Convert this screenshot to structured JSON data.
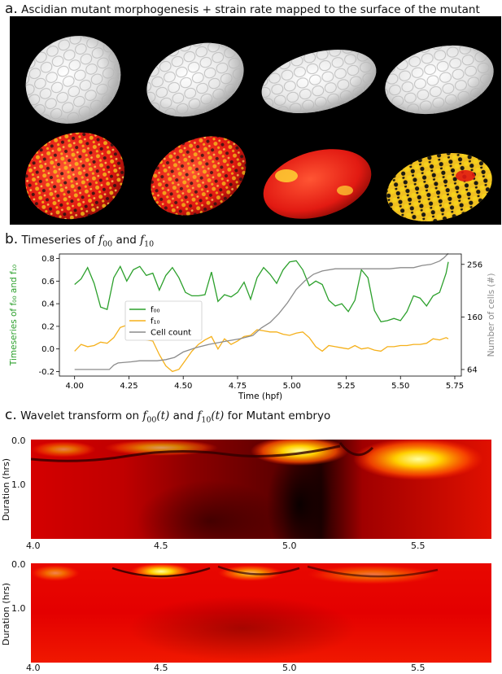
{
  "panel_a": {
    "letter": "a.",
    "title": "Ascidian mutant morphogenesis + strain rate mapped to the surface of the mutant"
  },
  "panel_b": {
    "letter": "b.",
    "title_prefix": "Timeseries of",
    "title_and": "and"
  },
  "panel_c": {
    "letter": "c.",
    "title_prefix": "Wavelet transform on",
    "title_and": "and",
    "title_suffix": "for Mutant embryo",
    "ylabel": "Duration (hrs)",
    "yticks": [
      "0.0",
      "1.0"
    ],
    "xticks": [
      "4.0",
      "4.5",
      "5.0",
      "5.5"
    ]
  },
  "colors": {
    "f00": "#2ca02c",
    "f10": "#f5b01a",
    "cell_count": "#8c8c8c",
    "heatmap": [
      "#000000",
      "#8b0000",
      "#e00000",
      "#ff4000",
      "#ffd000",
      "#ffff99"
    ]
  },
  "chart_data": {
    "type": "line",
    "title": "Timeseries of f00 and f10",
    "xlabel": "Time (hpf)",
    "ylabel": "Timeseries of f₀₀ and f₁₀",
    "ylabel_right": "Number of cells (#)",
    "xlim": [
      3.93,
      5.78
    ],
    "ylim": [
      -0.24,
      0.84
    ],
    "ylim_right": [
      52,
      275
    ],
    "xticks": [
      "4.00",
      "4.25",
      "4.50",
      "4.75",
      "5.00",
      "5.25",
      "5.50",
      "5.75"
    ],
    "yticks": [
      "-0.2",
      "0.0",
      "0.2",
      "0.4",
      "0.6",
      "0.8"
    ],
    "yticks_right": [
      "64",
      "160",
      "256"
    ],
    "legend": {
      "placement": "center-left",
      "entries": [
        "f₀₀",
        "f₁₀",
        "Cell count"
      ]
    },
    "grid": false,
    "series": [
      {
        "name": "f₀₀",
        "axis": "left",
        "x": [
          4.0,
          4.03,
          4.06,
          4.09,
          4.12,
          4.15,
          4.18,
          4.21,
          4.24,
          4.27,
          4.3,
          4.33,
          4.36,
          4.39,
          4.42,
          4.45,
          4.48,
          4.51,
          4.54,
          4.57,
          4.6,
          4.63,
          4.66,
          4.69,
          4.72,
          4.75,
          4.78,
          4.81,
          4.84,
          4.87,
          4.9,
          4.93,
          4.96,
          4.99,
          5.02,
          5.05,
          5.08,
          5.11,
          5.14,
          5.17,
          5.2,
          5.23,
          5.26,
          5.29,
          5.32,
          5.35,
          5.38,
          5.41,
          5.44,
          5.47,
          5.5,
          5.53,
          5.56,
          5.59,
          5.62,
          5.65,
          5.68,
          5.71,
          5.72
        ],
        "y": [
          0.57,
          0.62,
          0.72,
          0.58,
          0.37,
          0.35,
          0.63,
          0.73,
          0.6,
          0.7,
          0.73,
          0.65,
          0.67,
          0.52,
          0.65,
          0.72,
          0.63,
          0.5,
          0.47,
          0.47,
          0.48,
          0.68,
          0.42,
          0.48,
          0.46,
          0.5,
          0.59,
          0.44,
          0.63,
          0.72,
          0.66,
          0.58,
          0.7,
          0.77,
          0.78,
          0.7,
          0.56,
          0.6,
          0.57,
          0.43,
          0.38,
          0.4,
          0.33,
          0.43,
          0.7,
          0.63,
          0.34,
          0.24,
          0.25,
          0.27,
          0.25,
          0.33,
          0.47,
          0.45,
          0.38,
          0.47,
          0.5,
          0.67,
          0.77
        ]
      },
      {
        "name": "f₁₀",
        "axis": "left",
        "x": [
          4.0,
          4.03,
          4.06,
          4.09,
          4.12,
          4.15,
          4.18,
          4.21,
          4.24,
          4.27,
          4.3,
          4.33,
          4.36,
          4.39,
          4.42,
          4.45,
          4.48,
          4.51,
          4.54,
          4.57,
          4.6,
          4.63,
          4.66,
          4.69,
          4.72,
          4.75,
          4.78,
          4.81,
          4.84,
          4.87,
          4.9,
          4.93,
          4.96,
          4.99,
          5.02,
          5.05,
          5.08,
          5.11,
          5.14,
          5.17,
          5.2,
          5.23,
          5.26,
          5.29,
          5.32,
          5.35,
          5.38,
          5.41,
          5.44,
          5.47,
          5.5,
          5.53,
          5.56,
          5.59,
          5.62,
          5.65,
          5.68,
          5.71,
          5.72
        ],
        "y": [
          -0.02,
          0.04,
          0.02,
          0.03,
          0.06,
          0.05,
          0.1,
          0.19,
          0.21,
          0.17,
          0.1,
          0.08,
          0.07,
          -0.05,
          -0.15,
          -0.2,
          -0.18,
          -0.1,
          -0.02,
          0.04,
          0.08,
          0.11,
          0.0,
          0.09,
          0.04,
          0.07,
          0.11,
          0.12,
          0.17,
          0.16,
          0.15,
          0.15,
          0.13,
          0.12,
          0.14,
          0.15,
          0.1,
          0.02,
          -0.02,
          0.03,
          0.02,
          0.01,
          0.0,
          0.03,
          0.0,
          0.01,
          -0.01,
          -0.02,
          0.02,
          0.02,
          0.03,
          0.03,
          0.04,
          0.04,
          0.05,
          0.09,
          0.08,
          0.1,
          0.09
        ]
      },
      {
        "name": "Cell count",
        "axis": "right",
        "x": [
          4.0,
          4.1,
          4.16,
          4.18,
          4.2,
          4.26,
          4.3,
          4.38,
          4.42,
          4.46,
          4.5,
          4.56,
          4.62,
          4.7,
          4.76,
          4.82,
          4.86,
          4.9,
          4.94,
          4.98,
          5.02,
          5.06,
          5.1,
          5.14,
          5.2,
          5.3,
          5.4,
          5.45,
          5.5,
          5.56,
          5.6,
          5.64,
          5.68,
          5.7,
          5.72
        ],
        "y": [
          64,
          64,
          64,
          72,
          76,
          78,
          80,
          80,
          82,
          86,
          96,
          104,
          110,
          116,
          120,
          126,
          140,
          150,
          166,
          186,
          210,
          226,
          238,
          244,
          248,
          248,
          248,
          248,
          250,
          250,
          254,
          256,
          262,
          268,
          276
        ]
      }
    ]
  }
}
